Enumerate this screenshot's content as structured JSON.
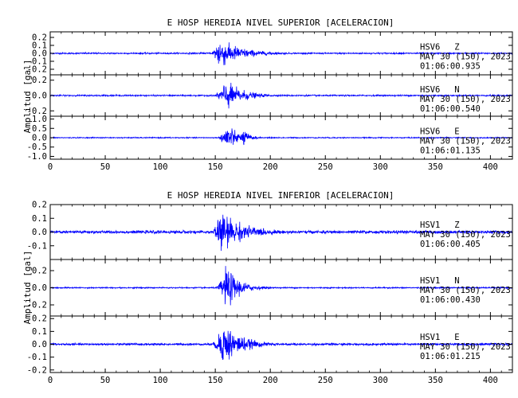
{
  "chart_data": [
    {
      "type": "line",
      "title": "E HOSP HEREDIA NIVEL SUPERIOR [ACELERACION]",
      "ylabel": "Amplitud [gal]",
      "xlim": [
        0,
        420
      ],
      "x_ticks": [
        0,
        50,
        100,
        150,
        200,
        250,
        300,
        350,
        400
      ],
      "line_color": "#0000ff",
      "series": [
        {
          "station": "HSV6",
          "component": "Z",
          "date": "MAY 30 (150), 2023",
          "time": "01:06:00.935",
          "ylim": [
            -0.27,
            0.27
          ],
          "y_ticks": [
            "0.2",
            "0.1",
            "0.0",
            "-0.1",
            "-0.2"
          ],
          "y_values": [
            0.2,
            0.1,
            0.0,
            -0.1,
            -0.2
          ],
          "noise": 0.01,
          "bursts": [
            {
              "t0": 146,
              "peak": 153,
              "amp": 0.22,
              "decay": 20
            },
            {
              "t0": 163,
              "peak": 166,
              "amp": 0.06,
              "decay": 12
            }
          ]
        },
        {
          "station": "HSV6",
          "component": "N",
          "date": "MAY 30 (150), 2023",
          "time": "01:06:00.540",
          "ylim": [
            -0.27,
            0.27
          ],
          "y_ticks": [
            "0.2",
            "0.0",
            "-0.2"
          ],
          "y_values": [
            0.2,
            0.0,
            -0.2
          ],
          "noise": 0.01,
          "bursts": [
            {
              "t0": 148,
              "peak": 160,
              "amp": 0.22,
              "decay": 15
            },
            {
              "t0": 168,
              "peak": 174,
              "amp": 0.05,
              "decay": 10
            }
          ]
        },
        {
          "station": "HSV6",
          "component": "E",
          "date": "MAY 30 (150), 2023",
          "time": "01:06:01.135",
          "ylim": [
            -1.15,
            1.15
          ],
          "y_ticks": [
            "1.0",
            "0.5",
            "0.0",
            "-0.5",
            "-1.0"
          ],
          "y_values": [
            1.0,
            0.5,
            0.0,
            -0.5,
            -1.0
          ],
          "noise": 0.03,
          "bursts": [
            {
              "t0": 152,
              "peak": 162,
              "amp": 0.95,
              "decay": 7
            },
            {
              "t0": 168,
              "peak": 176,
              "amp": 0.5,
              "decay": 6
            }
          ]
        }
      ]
    },
    {
      "type": "line",
      "title": "E HOSP HEREDIA NIVEL INFERIOR [ACELERACION]",
      "ylabel": "Amplitud [gal]",
      "xlim": [
        0,
        420
      ],
      "x_ticks": [
        0,
        50,
        100,
        150,
        200,
        250,
        300,
        350,
        400
      ],
      "line_color": "#0000ff",
      "series": [
        {
          "station": "HSV1",
          "component": "Z",
          "date": "MAY 30 (150), 2023",
          "time": "01:06:00.405",
          "ylim": [
            -0.2,
            0.2
          ],
          "y_ticks": [
            "0.2",
            "0.1",
            "0.0",
            "-0.1"
          ],
          "y_values": [
            0.2,
            0.1,
            0.0,
            -0.1
          ],
          "noise": 0.012,
          "bursts": [
            {
              "t0": 146,
              "peak": 154,
              "amp": 0.17,
              "decay": 22
            },
            {
              "t0": 162,
              "peak": 165,
              "amp": 0.06,
              "decay": 14
            }
          ]
        },
        {
          "station": "HSV1",
          "component": "N",
          "date": "MAY 30 (150), 2023",
          "time": "01:06:00.430",
          "ylim": [
            -0.33,
            0.33
          ],
          "y_ticks": [
            "0.2",
            "0.0",
            "-0.2"
          ],
          "y_values": [
            0.2,
            0.0,
            -0.2
          ],
          "noise": 0.008,
          "bursts": [
            {
              "t0": 150,
              "peak": 160,
              "amp": 0.28,
              "decay": 12
            },
            {
              "t0": 168,
              "peak": 172,
              "amp": 0.06,
              "decay": 10
            }
          ]
        },
        {
          "station": "HSV1",
          "component": "E",
          "date": "MAY 30 (150), 2023",
          "time": "01:06:01.215",
          "ylim": [
            -0.22,
            0.22
          ],
          "y_ticks": [
            "0.2",
            "0.1",
            "0.0",
            "-0.1",
            "-0.2"
          ],
          "y_values": [
            0.2,
            0.1,
            0.0,
            -0.1,
            -0.2
          ],
          "noise": 0.009,
          "bursts": [
            {
              "t0": 146,
              "peak": 158,
              "amp": 0.19,
              "decay": 16
            },
            {
              "t0": 166,
              "peak": 170,
              "amp": 0.05,
              "decay": 12
            }
          ]
        }
      ]
    }
  ]
}
